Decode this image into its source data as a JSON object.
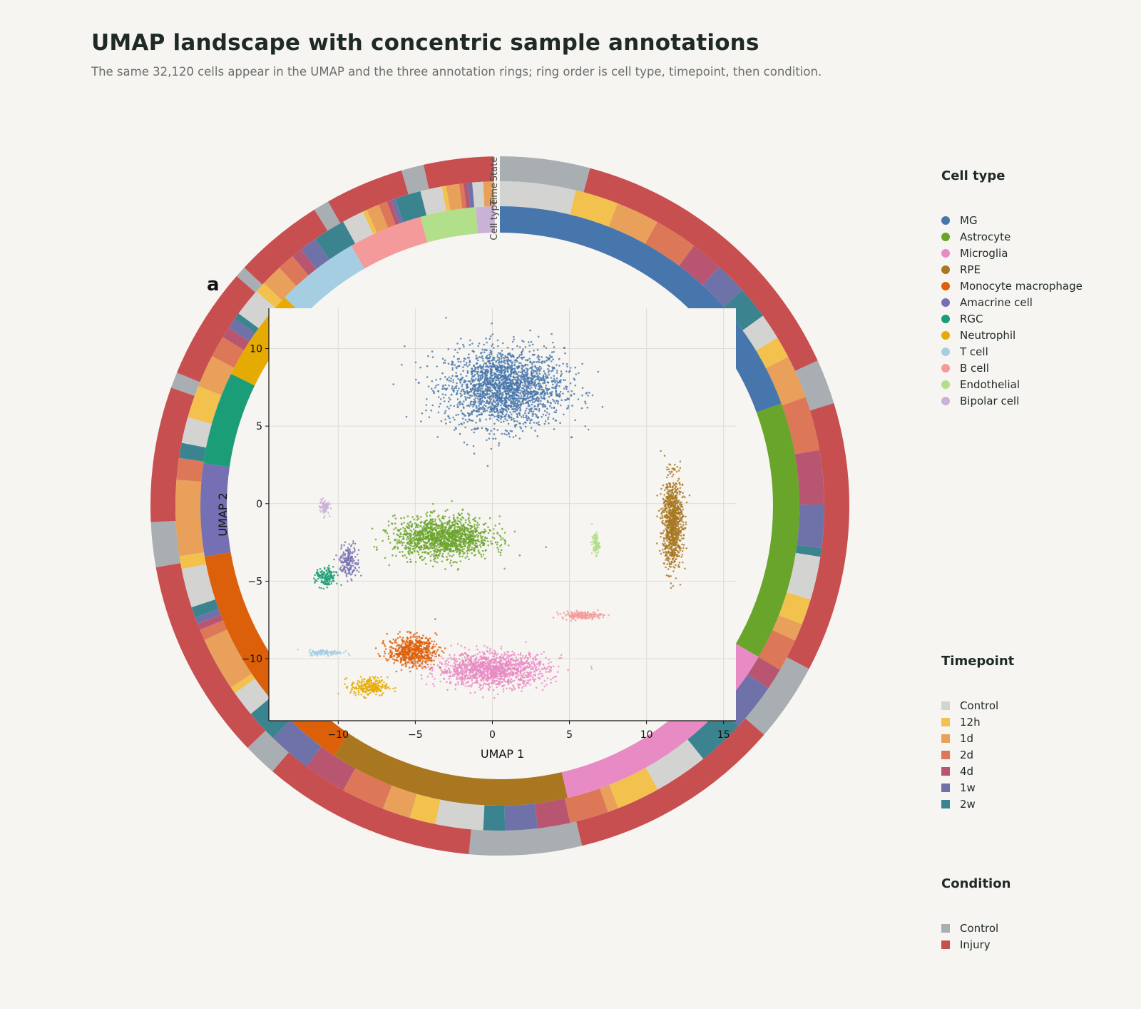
{
  "title": "UMAP landscape with concentric sample annotations",
  "subtitle": "The same 32,120 cells appear in the UMAP and the three annotation rings; ring order is cell type, timepoint, then condition.",
  "panel_label": "a",
  "ring_labels": {
    "inner": "Cell type",
    "middle": "Time",
    "outer": "State"
  },
  "legends": {
    "cell_type": {
      "title": "Cell type",
      "items": [
        {
          "label": "MG",
          "color": "#4676ab"
        },
        {
          "label": "Astrocyte",
          "color": "#69a42b"
        },
        {
          "label": "Microglia",
          "color": "#e88ac4"
        },
        {
          "label": "RPE",
          "color": "#a87720"
        },
        {
          "label": "Monocyte macrophage",
          "color": "#dc5f0a"
        },
        {
          "label": "Amacrine cell",
          "color": "#7570b3"
        },
        {
          "label": "RGC",
          "color": "#1b9e77"
        },
        {
          "label": "Neutrophil",
          "color": "#e6ab02"
        },
        {
          "label": "T cell",
          "color": "#a6cee3"
        },
        {
          "label": "B cell",
          "color": "#f49a9a"
        },
        {
          "label": "Endothelial",
          "color": "#b2df8a"
        },
        {
          "label": "Bipolar cell",
          "color": "#cab2d6"
        }
      ]
    },
    "timepoint": {
      "title": "Timepoint",
      "items": [
        {
          "label": "Control",
          "color": "#d3d3d1"
        },
        {
          "label": "12h",
          "color": "#f2c14e"
        },
        {
          "label": "1d",
          "color": "#e8a05a"
        },
        {
          "label": "2d",
          "color": "#dc7757"
        },
        {
          "label": "4d",
          "color": "#b85672"
        },
        {
          "label": "1w",
          "color": "#6e72a8"
        },
        {
          "label": "2w",
          "color": "#3c8390"
        }
      ]
    },
    "condition": {
      "title": "Condition",
      "items": [
        {
          "label": "Control",
          "color": "#a8aeb1"
        },
        {
          "label": "Injury",
          "color": "#c84f50"
        }
      ]
    }
  },
  "chart_data": {
    "type": "scatter",
    "xlabel": "UMAP 1",
    "ylabel": "UMAP 2",
    "xlim": [
      -14.5,
      15.8
    ],
    "ylim": [
      -14,
      12.6
    ],
    "xticks": [
      -10,
      -5,
      0,
      5,
      10,
      15
    ],
    "yticks": [
      -10,
      -5,
      0,
      5,
      10
    ],
    "grid": true,
    "total_cells": 32120,
    "clusters": [
      {
        "cell_type": "MG",
        "color": "#4676ab",
        "cx": 0.8,
        "cy": 7.5,
        "sx": 3.2,
        "sy": 2.1,
        "n": 2200
      },
      {
        "cell_type": "Astrocyte",
        "color": "#69a42b",
        "cx": -3.2,
        "cy": -2.2,
        "sx": 2.6,
        "sy": 1.1,
        "n": 1400
      },
      {
        "cell_type": "Microglia",
        "color": "#e88ac4",
        "cx": 0.0,
        "cy": -10.7,
        "sx": 3.0,
        "sy": 0.9,
        "n": 1300
      },
      {
        "cell_type": "RPE",
        "color": "#a87720",
        "cx": 11.7,
        "cy": -1.2,
        "sx": 0.55,
        "sy": 2.4,
        "n": 900
      },
      {
        "cell_type": "Monocyte macrophage",
        "color": "#dc5f0a",
        "cx": -5.2,
        "cy": -9.5,
        "sx": 1.3,
        "sy": 0.8,
        "n": 600
      },
      {
        "cell_type": "Amacrine cell",
        "color": "#7570b3",
        "cx": -9.3,
        "cy": -3.7,
        "sx": 0.55,
        "sy": 0.9,
        "n": 180
      },
      {
        "cell_type": "RGC",
        "color": "#1b9e77",
        "cx": -10.8,
        "cy": -4.8,
        "sx": 0.55,
        "sy": 0.55,
        "n": 150
      },
      {
        "cell_type": "Neutrophil",
        "color": "#e6ab02",
        "cx": -8.0,
        "cy": -11.8,
        "sx": 1.0,
        "sy": 0.5,
        "n": 250
      },
      {
        "cell_type": "T cell",
        "color": "#a6cee3",
        "cx": -10.8,
        "cy": -9.6,
        "sx": 0.9,
        "sy": 0.15,
        "n": 120
      },
      {
        "cell_type": "B cell",
        "color": "#f49a9a",
        "cx": 5.8,
        "cy": -7.2,
        "sx": 1.1,
        "sy": 0.2,
        "n": 160
      },
      {
        "cell_type": "Endothelial",
        "color": "#b2df8a",
        "cx": 6.7,
        "cy": -2.6,
        "sx": 0.2,
        "sy": 0.6,
        "n": 90
      },
      {
        "cell_type": "Bipolar cell",
        "color": "#cab2d6",
        "cx": -10.9,
        "cy": -0.2,
        "sx": 0.25,
        "sy": 0.4,
        "n": 80
      }
    ],
    "rings": {
      "cell_type": [
        {
          "label": "MG",
          "frac": 0.195,
          "color": "#4676ab"
        },
        {
          "label": "Astrocyte",
          "frac": 0.14,
          "color": "#69a42b"
        },
        {
          "label": "Microglia",
          "frac": 0.13,
          "color": "#e88ac4"
        },
        {
          "label": "RPE",
          "frac": 0.13,
          "color": "#a87720"
        },
        {
          "label": "Monocyte macrophage",
          "frac": 0.13,
          "color": "#dc5f0a"
        },
        {
          "label": "Amacrine cell",
          "frac": 0.05,
          "color": "#7570b3"
        },
        {
          "label": "RGC",
          "frac": 0.05,
          "color": "#1b9e77"
        },
        {
          "label": "Neutrophil",
          "frac": 0.05,
          "color": "#e6ab02"
        },
        {
          "label": "T cell",
          "frac": 0.045,
          "color": "#a6cee3"
        },
        {
          "label": "B cell",
          "frac": 0.04,
          "color": "#f49a9a"
        },
        {
          "label": "Endothelial",
          "frac": 0.03,
          "color": "#b2df8a"
        },
        {
          "label": "Bipolar cell",
          "frac": 0.01,
          "color": "#cab2d6"
        }
      ],
      "timepoint": [
        {
          "label": "Control",
          "frac": 0.035,
          "color": "#d3d3d1"
        },
        {
          "label": "12h",
          "frac": 0.02,
          "color": "#f2c14e"
        },
        {
          "label": "1d",
          "frac": 0.02,
          "color": "#e8a05a"
        },
        {
          "label": "2d",
          "frac": 0.02,
          "color": "#dc7757"
        },
        {
          "label": "4d",
          "frac": 0.015,
          "color": "#b85672"
        },
        {
          "label": "1w",
          "frac": 0.015,
          "color": "#6e72a8"
        },
        {
          "label": "2w",
          "frac": 0.015,
          "color": "#3c8390"
        },
        {
          "label": "Control",
          "frac": 0.012,
          "color": "#d3d3d1"
        },
        {
          "label": "12h",
          "frac": 0.01,
          "color": "#f2c14e"
        },
        {
          "label": "1d",
          "frac": 0.02,
          "color": "#e8a05a"
        },
        {
          "label": "2d",
          "frac": 0.025,
          "color": "#dc7757"
        },
        {
          "label": "4d",
          "frac": 0.025,
          "color": "#b85672"
        },
        {
          "label": "1w",
          "frac": 0.02,
          "color": "#6e72a8"
        },
        {
          "label": "2w",
          "frac": 0.004,
          "color": "#3c8390"
        },
        {
          "label": "Control",
          "frac": 0.02,
          "color": "#d3d3d1"
        },
        {
          "label": "12h",
          "frac": 0.012,
          "color": "#f2c14e"
        },
        {
          "label": "1d",
          "frac": 0.008,
          "color": "#e8a05a"
        },
        {
          "label": "2d",
          "frac": 0.015,
          "color": "#dc7757"
        },
        {
          "label": "4d",
          "frac": 0.01,
          "color": "#b85672"
        },
        {
          "label": "1w",
          "frac": 0.022,
          "color": "#6e72a8"
        },
        {
          "label": "2w",
          "frac": 0.022,
          "color": "#3c8390"
        },
        {
          "label": "Control",
          "frac": 0.025,
          "color": "#d3d3d1"
        },
        {
          "label": "12h",
          "frac": 0.02,
          "color": "#f2c14e"
        },
        {
          "label": "1d",
          "frac": 0.005,
          "color": "#e8a05a"
        },
        {
          "label": "2d",
          "frac": 0.018,
          "color": "#dc7757"
        },
        {
          "label": "4d",
          "frac": 0.015,
          "color": "#b85672"
        },
        {
          "label": "1w",
          "frac": 0.015,
          "color": "#6e72a8"
        },
        {
          "label": "2w",
          "frac": 0.01,
          "color": "#3c8390"
        },
        {
          "label": "Control",
          "frac": 0.022,
          "color": "#d3d3d1"
        },
        {
          "label": "12h",
          "frac": 0.012,
          "color": "#f2c14e"
        },
        {
          "label": "1d",
          "frac": 0.013,
          "color": "#e8a05a"
        },
        {
          "label": "2d",
          "frac": 0.02,
          "color": "#dc7757"
        },
        {
          "label": "4d",
          "frac": 0.02,
          "color": "#b85672"
        },
        {
          "label": "1w",
          "frac": 0.02,
          "color": "#6e72a8"
        },
        {
          "label": "2w",
          "frac": 0.015,
          "color": "#3c8390"
        },
        {
          "label": "Control",
          "frac": 0.012,
          "color": "#d3d3d1"
        },
        {
          "label": "12h",
          "frac": 0.003,
          "color": "#f2c14e"
        },
        {
          "label": "1d",
          "frac": 0.025,
          "color": "#e8a05a"
        },
        {
          "label": "2d",
          "frac": 0.005,
          "color": "#dc7757"
        },
        {
          "label": "4d",
          "frac": 0.003,
          "color": "#b85672"
        },
        {
          "label": "1w",
          "frac": 0.003,
          "color": "#6e72a8"
        },
        {
          "label": "2w",
          "frac": 0.005,
          "color": "#3c8390"
        },
        {
          "label": "Control",
          "frac": 0.018,
          "color": "#d3d3d1"
        },
        {
          "label": "12h",
          "frac": 0.006,
          "color": "#f2c14e"
        },
        {
          "label": "1d",
          "frac": 0.035,
          "color": "#e8a05a"
        },
        {
          "label": "2d",
          "frac": 0.01,
          "color": "#dc7757"
        },
        {
          "label": "2w",
          "frac": 0.007,
          "color": "#3c8390"
        },
        {
          "label": "Control",
          "frac": 0.012,
          "color": "#d3d3d1"
        },
        {
          "label": "12h",
          "frac": 0.015,
          "color": "#f2c14e"
        },
        {
          "label": "1d",
          "frac": 0.015,
          "color": "#e8a05a"
        },
        {
          "label": "2d",
          "frac": 0.01,
          "color": "#dc7757"
        },
        {
          "label": "4d",
          "frac": 0.005,
          "color": "#b85672"
        },
        {
          "label": "1w",
          "frac": 0.005,
          "color": "#6e72a8"
        },
        {
          "label": "2w",
          "frac": 0.003,
          "color": "#3c8390"
        },
        {
          "label": "Control",
          "frac": 0.013,
          "color": "#d3d3d1"
        },
        {
          "label": "12h",
          "frac": 0.005,
          "color": "#f2c14e"
        },
        {
          "label": "1d",
          "frac": 0.01,
          "color": "#e8a05a"
        },
        {
          "label": "2d",
          "frac": 0.008,
          "color": "#dc7757"
        },
        {
          "label": "4d",
          "frac": 0.005,
          "color": "#b85672"
        },
        {
          "label": "1w",
          "frac": 0.008,
          "color": "#6e72a8"
        },
        {
          "label": "2w",
          "frac": 0.015,
          "color": "#3c8390"
        },
        {
          "label": "Control",
          "frac": 0.01,
          "color": "#d3d3d1"
        },
        {
          "label": "12h",
          "frac": 0.002,
          "color": "#f2c14e"
        },
        {
          "label": "1d",
          "frac": 0.006,
          "color": "#e8a05a"
        },
        {
          "label": "2d",
          "frac": 0.004,
          "color": "#dc7757"
        },
        {
          "label": "4d",
          "frac": 0.002,
          "color": "#b85672"
        },
        {
          "label": "1w",
          "frac": 0.002,
          "color": "#6e72a8"
        },
        {
          "label": "2w",
          "frac": 0.012,
          "color": "#3c8390"
        },
        {
          "label": "Control",
          "frac": 0.01,
          "color": "#d3d3d1"
        },
        {
          "label": "12h",
          "frac": 0.002,
          "color": "#f2c14e"
        },
        {
          "label": "1d",
          "frac": 0.006,
          "color": "#e8a05a"
        },
        {
          "label": "2d",
          "frac": 0.002,
          "color": "#dc7757"
        },
        {
          "label": "4d",
          "frac": 0.002,
          "color": "#b85672"
        },
        {
          "label": "1w",
          "frac": 0.002,
          "color": "#6e72a8"
        },
        {
          "label": "Control",
          "frac": 0.005,
          "color": "#d3d3d1"
        },
        {
          "label": "1d",
          "frac": 0.005,
          "color": "#e8a05a"
        }
      ],
      "condition": [
        {
          "label": "Control",
          "frac": 0.04,
          "color": "#a8aeb1"
        },
        {
          "label": "Injury",
          "frac": 0.135,
          "color": "#c84f50"
        },
        {
          "label": "Control",
          "frac": 0.02,
          "color": "#a8aeb1"
        },
        {
          "label": "Injury",
          "frac": 0.12,
          "color": "#c84f50"
        },
        {
          "label": "Control",
          "frac": 0.035,
          "color": "#a8aeb1"
        },
        {
          "label": "Injury",
          "frac": 0.095,
          "color": "#c84f50"
        },
        {
          "label": "Control",
          "frac": 0.05,
          "color": "#a8aeb1"
        },
        {
          "label": "Injury",
          "frac": 0.095,
          "color": "#c84f50"
        },
        {
          "label": "Control",
          "frac": 0.015,
          "color": "#a8aeb1"
        },
        {
          "label": "Injury",
          "frac": 0.09,
          "color": "#c84f50"
        },
        {
          "label": "Control",
          "frac": 0.02,
          "color": "#a8aeb1"
        },
        {
          "label": "Injury",
          "frac": 0.06,
          "color": "#c84f50"
        },
        {
          "label": "Control",
          "frac": 0.007,
          "color": "#a8aeb1"
        },
        {
          "label": "Injury",
          "frac": 0.05,
          "color": "#c84f50"
        },
        {
          "label": "Control",
          "frac": 0.005,
          "color": "#a8aeb1"
        },
        {
          "label": "Injury",
          "frac": 0.04,
          "color": "#c84f50"
        },
        {
          "label": "Control",
          "frac": 0.007,
          "color": "#a8aeb1"
        },
        {
          "label": "Injury",
          "frac": 0.035,
          "color": "#c84f50"
        },
        {
          "label": "Control",
          "frac": 0.01,
          "color": "#a8aeb1"
        },
        {
          "label": "Injury",
          "frac": 0.031,
          "color": "#c84f50"
        }
      ]
    }
  }
}
